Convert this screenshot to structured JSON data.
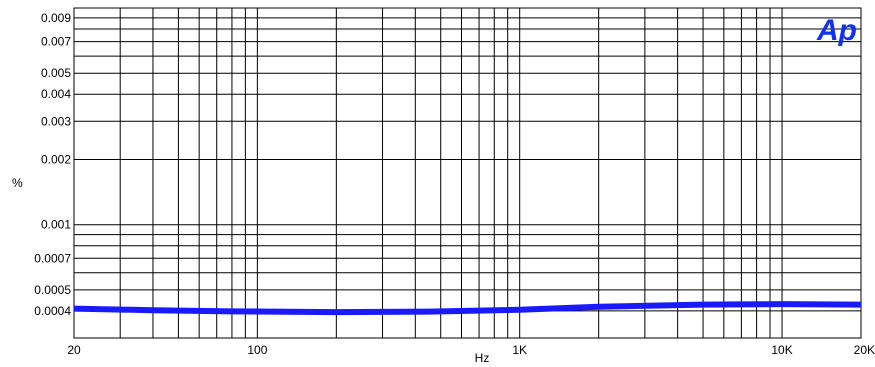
{
  "chart_data": {
    "type": "line",
    "title": "",
    "xlabel": "Hz",
    "ylabel": "%",
    "x_scale": "log",
    "y_scale": "log",
    "xlim": [
      20,
      20000
    ],
    "ylim": [
      0.0003,
      0.01
    ],
    "grid": true,
    "x_ticks": [
      {
        "value": 20,
        "label": "20"
      },
      {
        "value": 100,
        "label": "100"
      },
      {
        "value": 1000,
        "label": "1K"
      },
      {
        "value": 10000,
        "label": "10K"
      },
      {
        "value": 20000,
        "label": "20K"
      }
    ],
    "y_ticks": [
      {
        "value": 0.0004,
        "label": "0.0004"
      },
      {
        "value": 0.0005,
        "label": "0.0005"
      },
      {
        "value": 0.0007,
        "label": "0.0007"
      },
      {
        "value": 0.001,
        "label": "0.001"
      },
      {
        "value": 0.002,
        "label": "0.002"
      },
      {
        "value": 0.003,
        "label": "0.003"
      },
      {
        "value": 0.004,
        "label": "0.004"
      },
      {
        "value": 0.005,
        "label": "0.005"
      },
      {
        "value": 0.007,
        "label": "0.007"
      },
      {
        "value": 0.009,
        "label": "0.009"
      }
    ],
    "y_gridlines": [
      0.0004,
      0.0005,
      0.0006,
      0.0007,
      0.0008,
      0.0009,
      0.001,
      0.002,
      0.003,
      0.004,
      0.005,
      0.006,
      0.007,
      0.008,
      0.009
    ],
    "series": [
      {
        "color": "#1a1aff",
        "x": [
          20,
          40,
          80,
          200,
          450,
          1000,
          2000,
          5000,
          10000,
          20000
        ],
        "y": [
          0.00041,
          0.000403,
          0.000398,
          0.000395,
          0.000397,
          0.000405,
          0.000418,
          0.000428,
          0.00043,
          0.000428
        ]
      }
    ]
  },
  "logo": {
    "text": "Ap",
    "color": "#1133ee"
  }
}
